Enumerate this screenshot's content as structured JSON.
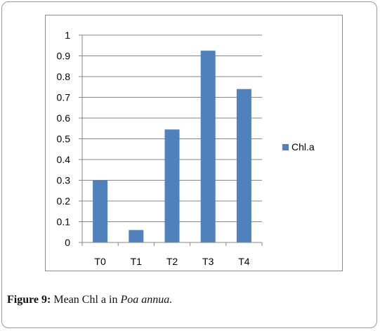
{
  "colors": {
    "bar": "#4f81bd",
    "grid": "#868686",
    "axis": "#868686",
    "text": "#000000"
  },
  "chart_data": {
    "type": "bar",
    "title": "",
    "xlabel": "",
    "ylabel": "",
    "categories": [
      "T0",
      "T1",
      "T2",
      "T3",
      "T4"
    ],
    "series": [
      {
        "name": "Chl.a",
        "values": [
          0.3,
          0.06,
          0.545,
          0.925,
          0.74
        ]
      }
    ],
    "ylim": [
      0,
      1
    ],
    "yticks": [
      "0",
      "0.1",
      "0.2",
      "0.3",
      "0.4",
      "0.5",
      "0.6",
      "0.7",
      "0.8",
      "0.9",
      "1"
    ],
    "grid": true,
    "legend_position": "right"
  },
  "caption": {
    "label": "Figure 9:",
    "text": "Mean Chl a in",
    "species": "Poa annua."
  }
}
